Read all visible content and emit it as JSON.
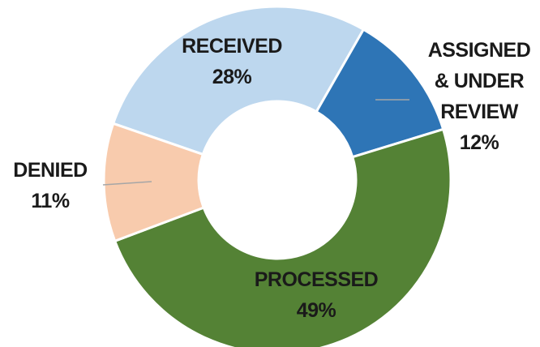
{
  "chart_data": {
    "type": "donut",
    "categories": [
      "RECEIVED",
      "ASSIGNED & UNDER REVIEW",
      "PROCESSED",
      "DENIED"
    ],
    "values": [
      28,
      12,
      49,
      11
    ],
    "value_labels": [
      "28%",
      "12%",
      "49%",
      "11%"
    ],
    "colors": [
      "#bdd7ee",
      "#2e75b6",
      "#548235",
      "#f8cbad"
    ]
  }
}
